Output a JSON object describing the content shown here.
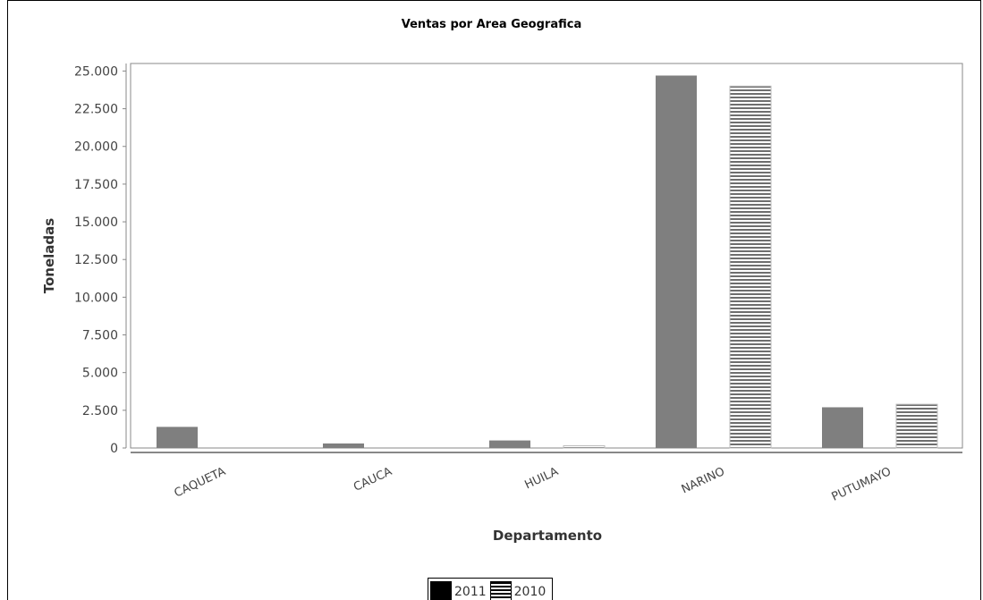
{
  "chart_data": {
    "type": "bar",
    "title": "Ventas por Area Geografica",
    "xlabel": "Departamento",
    "ylabel": "Toneladas",
    "categories": [
      "CAQUETA",
      "CAUCA",
      "HUILA",
      "NARINO",
      "PUTUMAYO"
    ],
    "series": [
      {
        "name": "2011",
        "values": [
          1400,
          300,
          500,
          24700,
          2700
        ]
      },
      {
        "name": "2010",
        "values": [
          0,
          0,
          150,
          24000,
          2900
        ]
      }
    ],
    "ylim": [
      0,
      25500
    ],
    "yticks": [
      {
        "value": 0,
        "label": "0"
      },
      {
        "value": 2500,
        "label": "2.500"
      },
      {
        "value": 5000,
        "label": "5.000"
      },
      {
        "value": 7500,
        "label": "7.500"
      },
      {
        "value": 10000,
        "label": "10.000"
      },
      {
        "value": 12500,
        "label": "12.500"
      },
      {
        "value": 15000,
        "label": "15.000"
      },
      {
        "value": 17500,
        "label": "17.500"
      },
      {
        "value": 20000,
        "label": "20.000"
      },
      {
        "value": 22500,
        "label": "22.500"
      },
      {
        "value": 25000,
        "label": "25.000"
      }
    ],
    "grid": false,
    "legend_position": "bottom",
    "colors": {
      "bar_2011": "#7f7f7f",
      "stripe_2010": "#6e6e6e",
      "axis": "#888888"
    }
  },
  "legend": {
    "items": [
      {
        "label": "2011"
      },
      {
        "label": "2010"
      }
    ]
  }
}
